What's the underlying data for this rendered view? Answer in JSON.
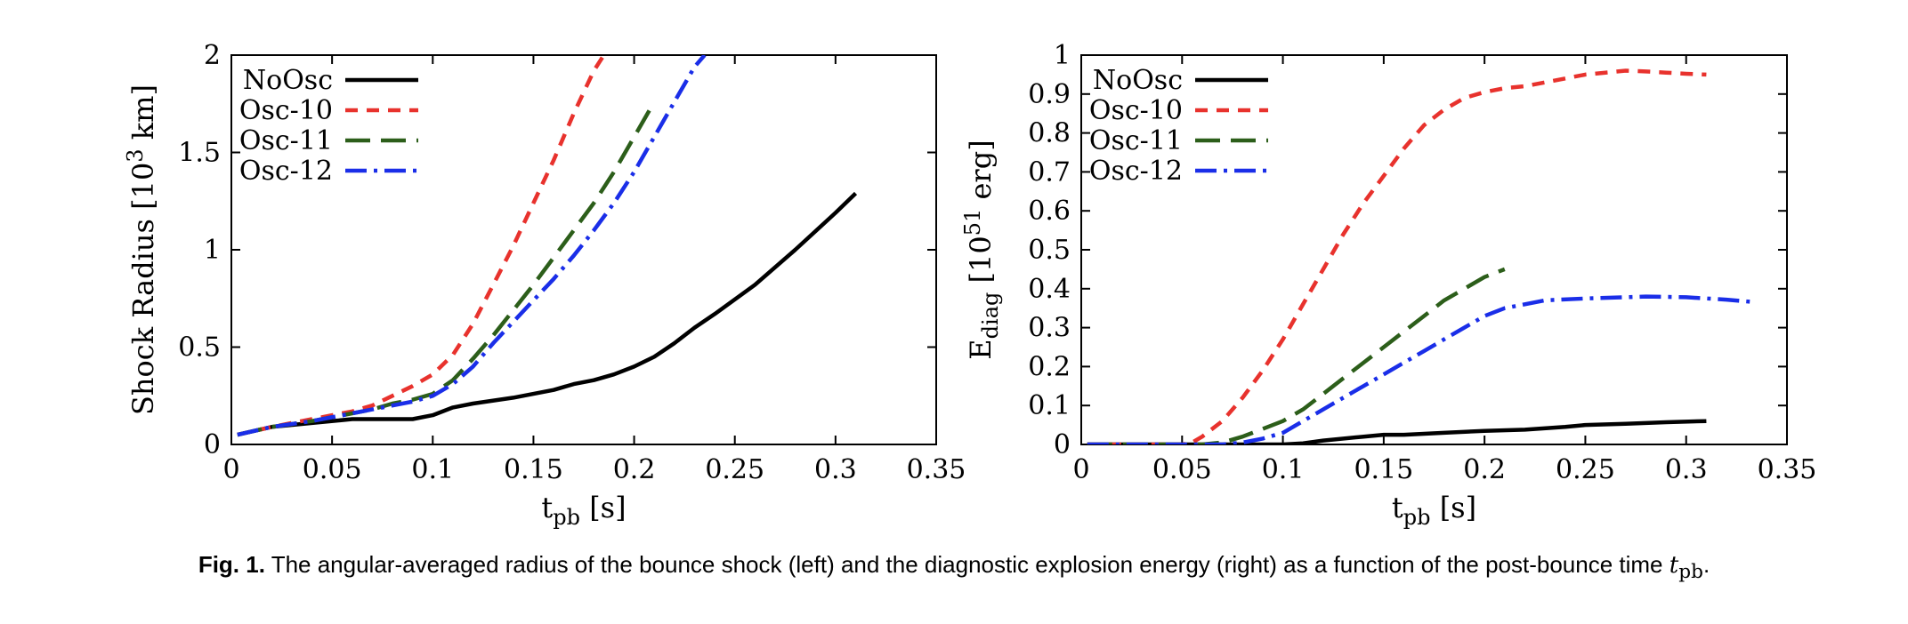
{
  "chart_data": [
    {
      "type": "line",
      "xlabel": "t",
      "xlabel_sub": "pb",
      "xlabel_unit": " [s]",
      "ylabel": "Shock Radius [10",
      "ylabel_sup": "3",
      "ylabel_unit": " km]",
      "xlim": [
        0,
        0.35
      ],
      "ylim": [
        0,
        2
      ],
      "xticks": [
        "0",
        "0.05",
        "0.1",
        "0.15",
        "0.2",
        "0.25",
        "0.3",
        "0.35"
      ],
      "yticks": [
        "0",
        "0.5",
        "1",
        "1.5",
        "2"
      ],
      "legend_position": "top-left",
      "series": [
        {
          "name": "NoOsc",
          "color": "#000000",
          "style": "solid",
          "x": [
            0.003,
            0.02,
            0.04,
            0.06,
            0.08,
            0.09,
            0.1,
            0.11,
            0.12,
            0.14,
            0.15,
            0.16,
            0.17,
            0.18,
            0.19,
            0.2,
            0.21,
            0.22,
            0.23,
            0.24,
            0.26,
            0.28,
            0.3,
            0.31
          ],
          "y": [
            0.05,
            0.09,
            0.11,
            0.13,
            0.13,
            0.13,
            0.15,
            0.19,
            0.21,
            0.24,
            0.26,
            0.28,
            0.31,
            0.33,
            0.36,
            0.4,
            0.45,
            0.52,
            0.6,
            0.67,
            0.82,
            1.0,
            1.19,
            1.29
          ]
        },
        {
          "name": "Osc-10",
          "color": "#e8322d",
          "style": "dashed",
          "x": [
            0.003,
            0.02,
            0.04,
            0.06,
            0.07,
            0.08,
            0.09,
            0.1,
            0.11,
            0.12,
            0.13,
            0.14,
            0.15,
            0.16,
            0.17,
            0.18,
            0.185
          ],
          "y": [
            0.05,
            0.09,
            0.13,
            0.17,
            0.2,
            0.25,
            0.3,
            0.36,
            0.46,
            0.62,
            0.82,
            1.02,
            1.24,
            1.46,
            1.7,
            1.92,
            2.0
          ]
        },
        {
          "name": "Osc-11",
          "color": "#2c5e1a",
          "style": "longdash",
          "x": [
            0.003,
            0.02,
            0.04,
            0.06,
            0.07,
            0.08,
            0.09,
            0.1,
            0.11,
            0.12,
            0.13,
            0.14,
            0.15,
            0.16,
            0.17,
            0.18,
            0.19,
            0.2,
            0.21
          ],
          "y": [
            0.05,
            0.09,
            0.12,
            0.16,
            0.18,
            0.21,
            0.23,
            0.26,
            0.33,
            0.44,
            0.56,
            0.69,
            0.82,
            0.96,
            1.1,
            1.24,
            1.4,
            1.58,
            1.76
          ]
        },
        {
          "name": "Osc-12",
          "color": "#1a2ee8",
          "style": "dashdot",
          "x": [
            0.003,
            0.02,
            0.04,
            0.06,
            0.07,
            0.08,
            0.09,
            0.1,
            0.11,
            0.12,
            0.13,
            0.14,
            0.15,
            0.16,
            0.17,
            0.18,
            0.19,
            0.2,
            0.21,
            0.22,
            0.23,
            0.235
          ],
          "y": [
            0.05,
            0.09,
            0.12,
            0.16,
            0.18,
            0.2,
            0.22,
            0.25,
            0.31,
            0.4,
            0.52,
            0.63,
            0.74,
            0.85,
            0.97,
            1.1,
            1.24,
            1.4,
            1.58,
            1.76,
            1.94,
            2.0
          ]
        }
      ]
    },
    {
      "type": "line",
      "xlabel": "t",
      "xlabel_sub": "pb",
      "xlabel_unit": " [s]",
      "ylabel": "E",
      "ylabel_sub": "diag",
      "ylabel_mid": " [10",
      "ylabel_sup": "51",
      "ylabel_unit": " erg]",
      "xlim": [
        0,
        0.35
      ],
      "ylim": [
        0,
        1
      ],
      "xticks": [
        "0",
        "0.05",
        "0.1",
        "0.15",
        "0.2",
        "0.25",
        "0.3",
        "0.35"
      ],
      "yticks": [
        "0",
        "0.1",
        "0.2",
        "0.3",
        "0.4",
        "0.5",
        "0.6",
        "0.7",
        "0.8",
        "0.9",
        "1"
      ],
      "legend_position": "top-left",
      "series": [
        {
          "name": "NoOsc",
          "color": "#000000",
          "style": "solid",
          "x": [
            0.003,
            0.05,
            0.1,
            0.11,
            0.12,
            0.14,
            0.15,
            0.16,
            0.18,
            0.2,
            0.22,
            0.24,
            0.25,
            0.27,
            0.29,
            0.31
          ],
          "y": [
            0,
            0,
            0,
            0.003,
            0.01,
            0.02,
            0.025,
            0.025,
            0.03,
            0.035,
            0.038,
            0.045,
            0.05,
            0.053,
            0.057,
            0.06
          ]
        },
        {
          "name": "Osc-10",
          "color": "#e8322d",
          "style": "dashed",
          "x": [
            0.003,
            0.05,
            0.055,
            0.06,
            0.07,
            0.08,
            0.09,
            0.1,
            0.11,
            0.12,
            0.13,
            0.14,
            0.15,
            0.16,
            0.17,
            0.18,
            0.19,
            0.2,
            0.21,
            0.22,
            0.23,
            0.24,
            0.25,
            0.26,
            0.27,
            0.28,
            0.29,
            0.3,
            0.31
          ],
          "y": [
            0,
            0,
            0.005,
            0.02,
            0.06,
            0.12,
            0.19,
            0.27,
            0.36,
            0.45,
            0.54,
            0.62,
            0.69,
            0.76,
            0.82,
            0.86,
            0.89,
            0.905,
            0.915,
            0.92,
            0.93,
            0.94,
            0.95,
            0.955,
            0.96,
            0.958,
            0.955,
            0.952,
            0.95
          ]
        },
        {
          "name": "Osc-11",
          "color": "#2c5e1a",
          "style": "longdash",
          "x": [
            0.003,
            0.06,
            0.07,
            0.08,
            0.09,
            0.1,
            0.11,
            0.12,
            0.13,
            0.14,
            0.15,
            0.16,
            0.17,
            0.18,
            0.19,
            0.2,
            0.21
          ],
          "y": [
            0,
            0,
            0.005,
            0.02,
            0.04,
            0.06,
            0.09,
            0.13,
            0.17,
            0.21,
            0.25,
            0.29,
            0.33,
            0.37,
            0.4,
            0.43,
            0.45
          ]
        },
        {
          "name": "Osc-12",
          "color": "#1a2ee8",
          "style": "dashdot",
          "x": [
            0.003,
            0.07,
            0.08,
            0.09,
            0.1,
            0.11,
            0.12,
            0.13,
            0.14,
            0.15,
            0.16,
            0.17,
            0.18,
            0.19,
            0.2,
            0.21,
            0.22,
            0.23,
            0.25,
            0.27,
            0.28,
            0.3,
            0.32,
            0.335
          ],
          "y": [
            0,
            0,
            0.005,
            0.015,
            0.03,
            0.06,
            0.09,
            0.12,
            0.15,
            0.18,
            0.21,
            0.24,
            0.27,
            0.3,
            0.33,
            0.35,
            0.36,
            0.37,
            0.375,
            0.378,
            0.38,
            0.378,
            0.372,
            0.365
          ]
        }
      ]
    }
  ],
  "caption": {
    "label": "Fig. 1.",
    "text": " The angular-averaged radius of the bounce shock (left) and the diagnostic explosion energy (right) as a function of the post-bounce time ",
    "symbol": "t",
    "symbol_sub": "pb",
    "end": "."
  }
}
